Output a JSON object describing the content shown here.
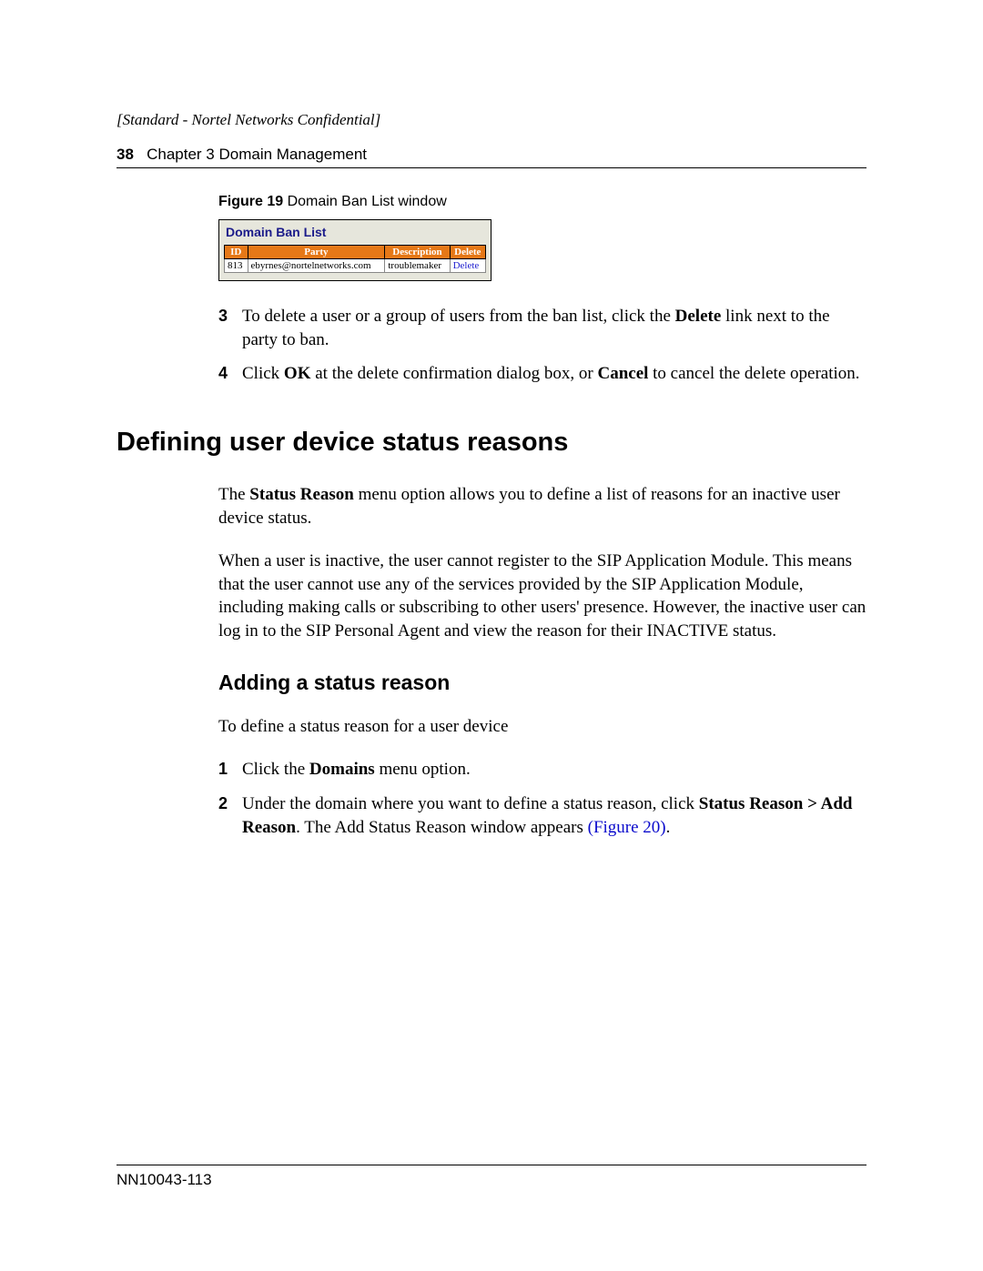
{
  "header": {
    "confidential": "[Standard - Nortel Networks Confidential]",
    "page_num": "38",
    "chapter": "Chapter 3  Domain Management"
  },
  "figure": {
    "label_bold": "Figure 19",
    "label_rest": "   Domain Ban List window",
    "panel_title": "Domain Ban List",
    "columns": {
      "id": "ID",
      "party": "Party",
      "desc": "Description",
      "del": "Delete"
    },
    "row": {
      "id": "813",
      "party": "ebyrnes@nortelnetworks.com",
      "desc": "troublemaker",
      "del": "Delete"
    }
  },
  "steps_a": {
    "s3_num": "3",
    "s3_pre": "To delete a user or a group of users from the ban list, click the ",
    "s3_bold": "Delete",
    "s3_post": " link next to the party to ban.",
    "s4_num": "4",
    "s4_pre": "Click ",
    "s4_ok": "OK",
    "s4_mid": " at the delete confirmation dialog box, or ",
    "s4_cancel": "Cancel",
    "s4_post": " to cancel the delete operation."
  },
  "section": {
    "h1": "Defining user device status reasons",
    "p1_pre": "The ",
    "p1_bold": "Status Reason",
    "p1_post": " menu option allows you to define a list of reasons for an inactive user device status.",
    "p2": "When a user is inactive, the user cannot register to the SIP Application Module. This means that the user cannot use any of the services provided by the SIP Application Module, including making calls or subscribing to other users' presence. However, the inactive user can log in to the SIP Personal Agent and view the reason for their INACTIVE status.",
    "h2": "Adding a status reason",
    "p3": "To define a status reason for a user device"
  },
  "steps_b": {
    "s1_num": "1",
    "s1_pre": "Click the ",
    "s1_bold": "Domains",
    "s1_post": " menu option.",
    "s2_num": "2",
    "s2_pre": "Under the domain where you want to define a status reason, click ",
    "s2_bold": "Status Reason > Add Reason",
    "s2_mid": ". The Add Status Reason window appears ",
    "s2_link": "(Figure 20)",
    "s2_post": "."
  },
  "footer": {
    "docid": "NN10043-113"
  }
}
